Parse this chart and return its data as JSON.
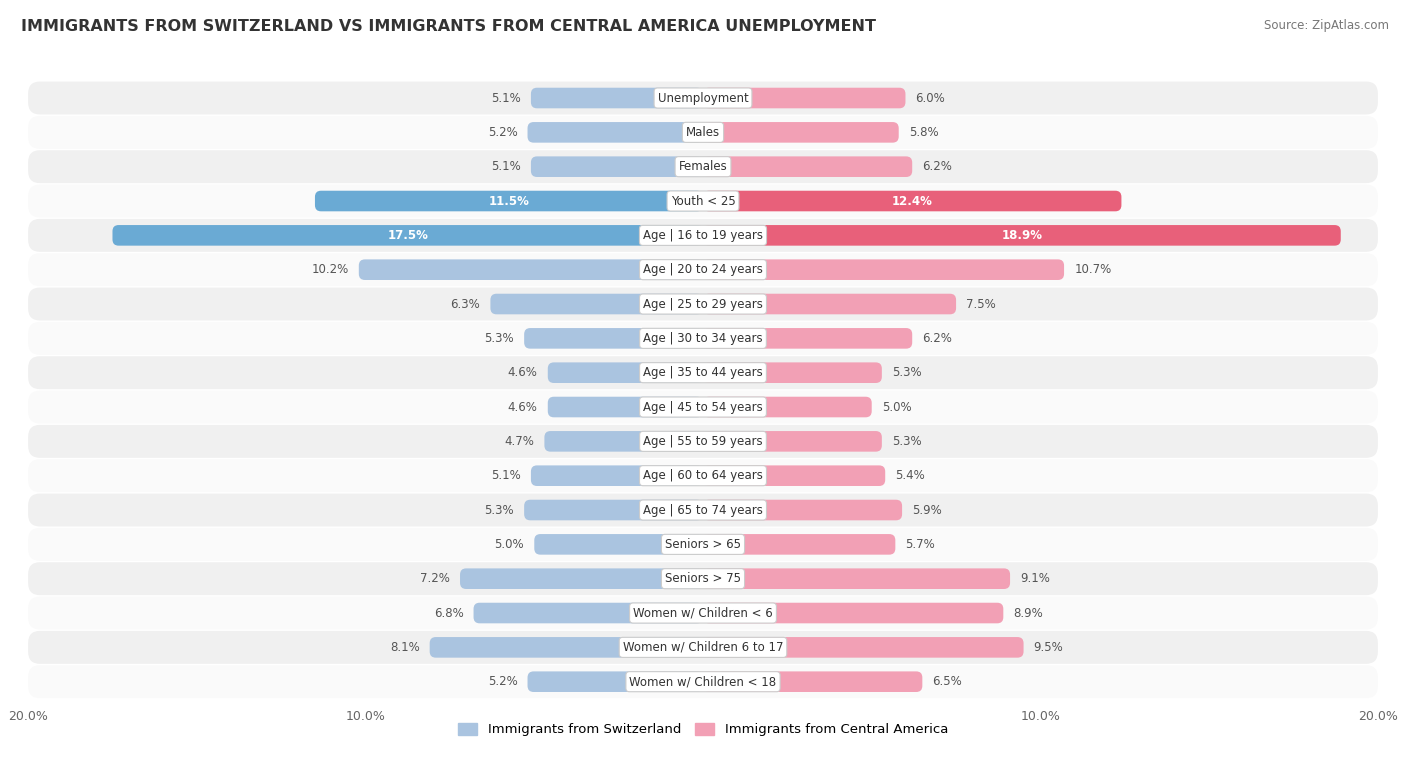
{
  "title": "IMMIGRANTS FROM SWITZERLAND VS IMMIGRANTS FROM CENTRAL AMERICA UNEMPLOYMENT",
  "source": "Source: ZipAtlas.com",
  "categories": [
    "Unemployment",
    "Males",
    "Females",
    "Youth < 25",
    "Age | 16 to 19 years",
    "Age | 20 to 24 years",
    "Age | 25 to 29 years",
    "Age | 30 to 34 years",
    "Age | 35 to 44 years",
    "Age | 45 to 54 years",
    "Age | 55 to 59 years",
    "Age | 60 to 64 years",
    "Age | 65 to 74 years",
    "Seniors > 65",
    "Seniors > 75",
    "Women w/ Children < 6",
    "Women w/ Children 6 to 17",
    "Women w/ Children < 18"
  ],
  "switzerland_values": [
    5.1,
    5.2,
    5.1,
    11.5,
    17.5,
    10.2,
    6.3,
    5.3,
    4.6,
    4.6,
    4.7,
    5.1,
    5.3,
    5.0,
    7.2,
    6.8,
    8.1,
    5.2
  ],
  "central_america_values": [
    6.0,
    5.8,
    6.2,
    12.4,
    18.9,
    10.7,
    7.5,
    6.2,
    5.3,
    5.0,
    5.3,
    5.4,
    5.9,
    5.7,
    9.1,
    8.9,
    9.5,
    6.5
  ],
  "switzerland_color": "#aac4e0",
  "central_america_color": "#f2a0b5",
  "switzerland_bold_color": "#6aaad4",
  "central_america_bold_color": "#e8607a",
  "axis_limit": 20.0,
  "row_bg_odd": "#f0f0f0",
  "row_bg_even": "#fafafa",
  "bar_height": 0.6,
  "label_fontsize": 8.5,
  "value_fontsize": 8.5,
  "title_fontsize": 11.5,
  "source_fontsize": 8.5,
  "legend_label_switzerland": "Immigrants from Switzerland",
  "legend_label_central_america": "Immigrants from Central America",
  "bold_threshold": 11.0,
  "tick_fontsize": 9
}
